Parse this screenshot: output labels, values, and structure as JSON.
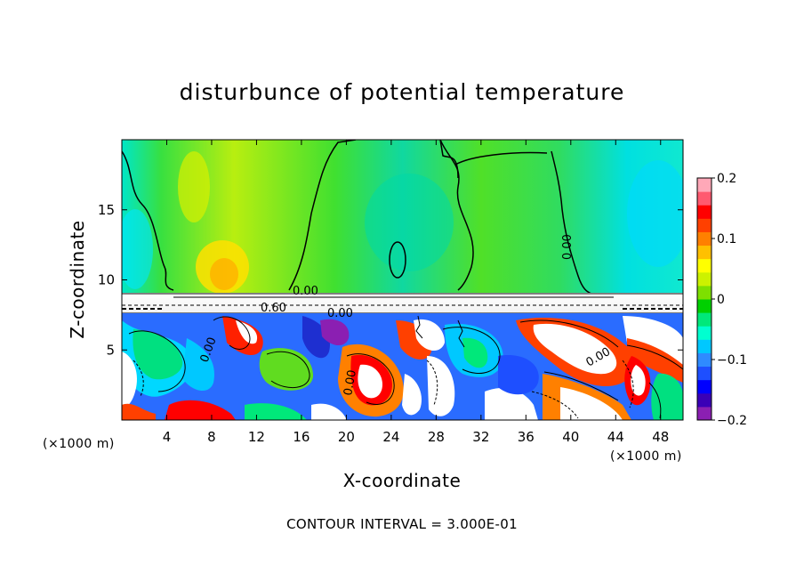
{
  "chart_data": {
    "type": "heatmap",
    "title": "disturbunce of potential temperature",
    "xlabel": "X-coordinate",
    "ylabel": "Z-coordinate",
    "x_unit": "(×1000 m)",
    "xlim": [
      0,
      50
    ],
    "ylim": [
      0,
      20
    ],
    "x_ticks": [
      4,
      8,
      12,
      16,
      20,
      24,
      28,
      32,
      36,
      40,
      44,
      48
    ],
    "y_ticks": [
      5,
      10,
      15
    ],
    "colorbar": {
      "min": -0.2,
      "max": 0.2,
      "ticks": [
        "0.2",
        "0.1",
        "0",
        "−0.1",
        "−0.2"
      ],
      "tick_values": [
        0.2,
        0.1,
        0,
        -0.1,
        -0.2
      ],
      "colors": [
        "#8b1fb2",
        "#3a00b7",
        "#0000ff",
        "#1e4fff",
        "#2f8bff",
        "#00c8ff",
        "#00ffd0",
        "#00e87a",
        "#00d000",
        "#7ee000",
        "#ccf200",
        "#ffff00",
        "#ffc000",
        "#ff8000",
        "#ff4000",
        "#ff0000",
        "#ff5a70",
        "#ffa8b8"
      ]
    },
    "contour_labels": [
      "0.00",
      "0.00",
      "0.60",
      "0.00",
      "0.00",
      "0.00",
      "0.00"
    ],
    "contour_interval_text": "CONTOUR INTERVAL = 3.000E-01",
    "grid": false
  }
}
